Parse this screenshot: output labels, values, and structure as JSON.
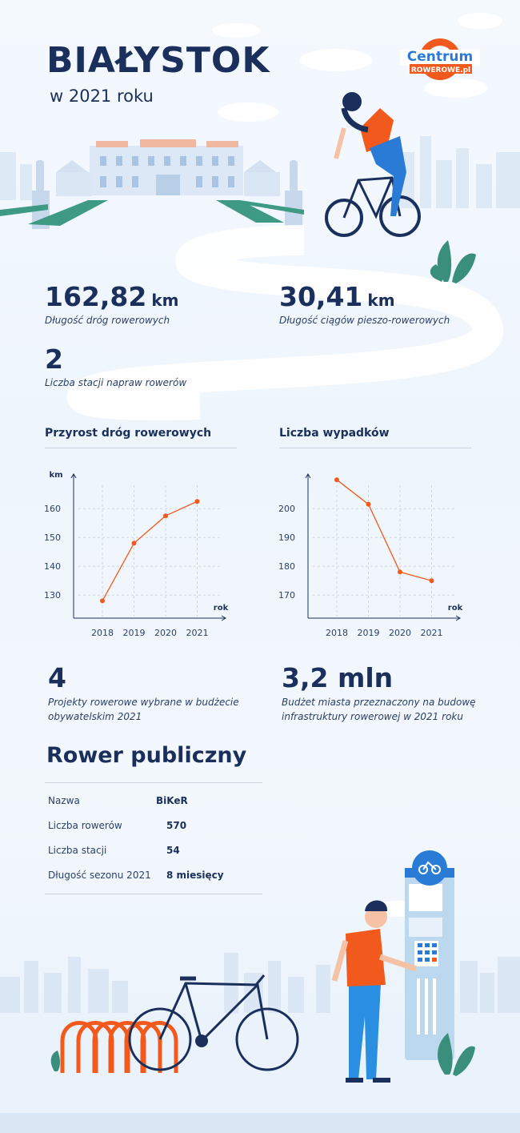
{
  "header": {
    "title": "BIAŁYSTOK",
    "subtitle": "w 2021 roku",
    "logo_line1": "Centrum",
    "logo_line2": "ROWEROWE.pl"
  },
  "stats": {
    "roads": {
      "value": "162,82",
      "unit": "km",
      "label": "Długość dróg rowerowych"
    },
    "paths": {
      "value": "30,41",
      "unit": "km",
      "label": "Długość ciągów pieszo-rowerowych"
    },
    "stations": {
      "value": "2",
      "label": "Liczba stacji napraw rowerów"
    },
    "projects": {
      "value": "4",
      "label_line1": "Projekty rowerowe wybrane w budżecie",
      "label_line2": "obywatelskim 2021"
    },
    "budget": {
      "value": "3,2 mln",
      "label_line1": "Budżet miasta przeznaczony na budowę",
      "label_line2": "infrastruktury rowerowej w 2021 roku"
    }
  },
  "chart_data": [
    {
      "type": "line",
      "title": "Przyrost dróg rowerowych",
      "ylabel": "km",
      "xlabel": "rok",
      "x": [
        "2018",
        "2019",
        "2020",
        "2021"
      ],
      "values": [
        128,
        148,
        157.5,
        162.5
      ],
      "yticks": [
        130,
        140,
        150,
        160
      ],
      "ylim": [
        122,
        172
      ],
      "grid": true,
      "color": "#f25a1d"
    },
    {
      "type": "line",
      "title": "Liczba wypadków",
      "ylabel": "",
      "xlabel": "rok",
      "x": [
        "2018",
        "2019",
        "2020",
        "2021"
      ],
      "values": [
        210,
        201.5,
        178,
        175
      ],
      "yticks": [
        170,
        180,
        190,
        200
      ],
      "ylim": [
        162,
        212
      ],
      "grid": true,
      "color": "#f25a1d"
    }
  ],
  "bike_share": {
    "title": "Rower publiczny",
    "rows": [
      {
        "key": "Nazwa",
        "value": "BiKeR"
      },
      {
        "key": "Liczba rowerów",
        "value": "570"
      },
      {
        "key": "Liczba stacji",
        "value": "54"
      },
      {
        "key": "Długość sezonu 2021",
        "value": "8 miesięcy"
      }
    ]
  },
  "colors": {
    "navy": "#1a2f5c",
    "accent": "#f25a1d",
    "sky": "#eef5fc",
    "station_blue": "#bcd8ef"
  }
}
